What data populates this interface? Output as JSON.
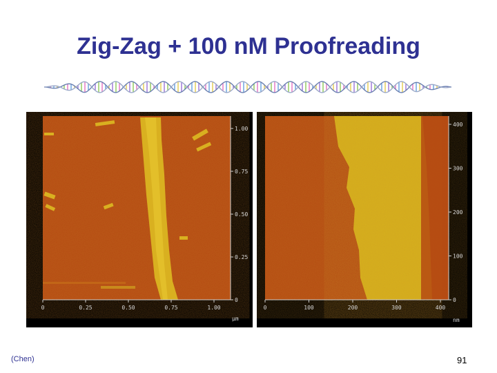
{
  "slide": {
    "title": "Zig-Zag + 100 nM Proofreading",
    "credit": "(Chen)",
    "page_number": "91"
  },
  "decoration": {
    "icon": "dna-helix-icon"
  },
  "left_image": {
    "x_ticks": [
      "0",
      "0.25",
      "0.50",
      "0.75",
      "1.00"
    ],
    "y_ticks": [
      "1.00",
      "0.75",
      "0.50",
      "0.25",
      "0"
    ],
    "unit": "µm"
  },
  "right_image": {
    "x_ticks": [
      "0",
      "100",
      "200",
      "300",
      "400"
    ],
    "y_ticks": [
      "400",
      "300",
      "200",
      "100",
      "0"
    ],
    "unit": "nm"
  },
  "colors": {
    "title": "#2e3192",
    "substrate": "#b54a12",
    "tile_lattice": "#d7b21c",
    "panel_bg": "#000000"
  }
}
